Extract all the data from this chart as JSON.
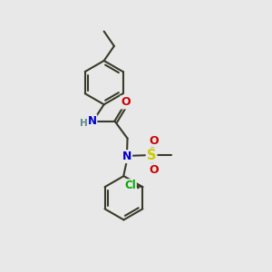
{
  "bg_color": "#e8e8e8",
  "bond_color": "#3a3a2a",
  "bond_width": 1.5,
  "atom_colors": {
    "N": "#0000cc",
    "NH": "#0000cc",
    "O": "#cc0000",
    "S": "#cccc00",
    "Cl": "#00aa00",
    "H": "#5a8a8a"
  },
  "figsize": [
    3.0,
    3.0
  ],
  "dpi": 100
}
